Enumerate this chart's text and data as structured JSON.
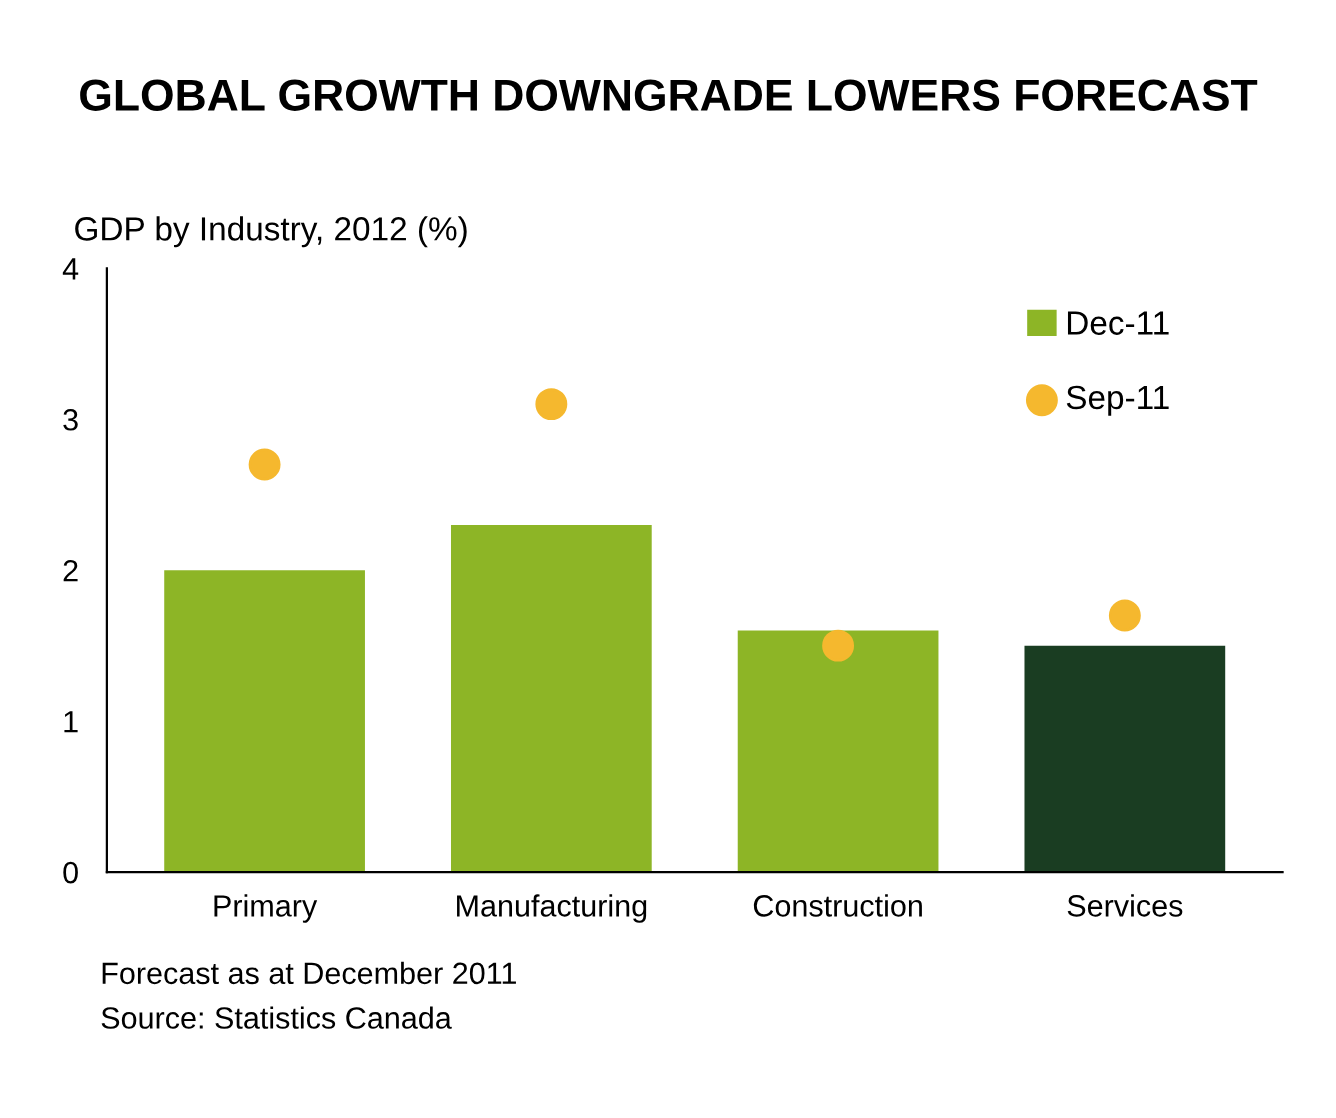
{
  "chart_data": {
    "type": "bar",
    "title": "GLOBAL GROWTH DOWNGRADE LOWERS FORECAST",
    "ylabel": "GDP by Industry, 2012 (%)",
    "categories": [
      "Primary",
      "Manufacturing",
      "Construction",
      "Services"
    ],
    "series": [
      {
        "name": "Dec-11",
        "color": "#8db526",
        "colors": [
          "#8db526",
          "#8db526",
          "#8db526",
          "#1a3d22"
        ],
        "values": [
          2.0,
          2.3,
          1.6,
          1.5
        ]
      },
      {
        "name": "Sep-11",
        "type": "scatter",
        "color": "#f5b82e",
        "x": [
          "Primary",
          "Manufacturing",
          "Construction",
          "Services"
        ],
        "values": [
          2.7,
          3.1,
          1.5,
          1.7
        ]
      }
    ],
    "ylim": [
      0,
      4
    ],
    "yticks": [
      0,
      1,
      2,
      3,
      4
    ],
    "grid": false,
    "legend": "top right",
    "marker": "circle",
    "annotations": [
      "Forecast as at December 2011",
      "Source: Statistics Canada"
    ]
  }
}
